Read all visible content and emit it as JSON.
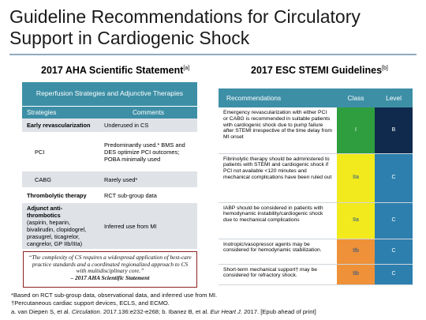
{
  "title": "Guideline Recommendations for Circulatory Support in Cardiogenic Shock",
  "left": {
    "heading": "2017 AHA Scientific Statement",
    "heading_ref": "[a]",
    "table_title": "Reperfusion Strategies and Adjunctive Therapies",
    "col1": "Strategies",
    "col2": "Comments",
    "rows": [
      {
        "strategy": "Early revascularization",
        "comment": "Underused in CS"
      },
      {
        "strategy": "PCI",
        "comment": "Predominantly used.* BMS and DES optimize PCI outcomes; POBA minimally used"
      },
      {
        "strategy": "CABG",
        "comment": "Rarely used*"
      },
      {
        "strategy": "Thrombolytic therapy",
        "comment": "RCT sub-group data"
      },
      {
        "strategy": "Adjunct anti-thrombotics",
        "strategy_detail": "(aspirin, heparin, bivalirudin, clopidogrel, prasugrel, ticagrelor, cangrelor, GP IIb/IIIa)",
        "comment": "Inferred use from MI"
      }
    ],
    "quote": "“The complexity of CS requires a widespread application of best-care practice standards and a coordinated regionalized approach to CS with multidisciplinary core.”",
    "quote_attr": "– 2017 AHA Scientific Statement"
  },
  "right": {
    "heading": "2017 ESC STEMI Guidelines",
    "heading_ref": "[b]",
    "col1": "Recommendations",
    "col2": "Class",
    "col3": "Level",
    "rows": [
      {
        "text": "Emergency revascularization with either PCI or CABG is recommended in suitable patients with cardiogenic shock due to pump failure after STEMI irrespective of the time delay from MI onset",
        "class": "I",
        "level": "B"
      },
      {
        "text": "Fibrinolytic therapy should be administered to patients with STEMI and cardiogenic shock if PCI not available <120 minutes and mechanical complications have been ruled out",
        "class": "IIa",
        "level": "C"
      },
      {
        "text": "IABP should be considered in patients with hemodynamic instability/cardiogenic shock due to mechanical complications",
        "class": "IIa",
        "level": "C"
      },
      {
        "text": "Inotropic/vasopressor agents may be considered for hemodynamic stabilization.",
        "class": "IIb",
        "level": "C"
      },
      {
        "text": "Short-term mechanical support† may be considered for refractory shock.",
        "class": "IIb",
        "level": "C"
      }
    ]
  },
  "footnotes": {
    "f1": "*Based on RCT sub-group data, observational data, and inferred use from MI.",
    "f2": "†Percutaneous cardiac support devices, ECLS, and ECMO.",
    "f3_a": "a. van Diepen S, et al. ",
    "f3_journal_a": "Circulation",
    "f3_b": ". 2017.136:e232-e268; b. Ibanez B, et al. ",
    "f3_journal_b": "Eur Heart J",
    "f3_c": ". 2017. [Epub ahead of print]"
  },
  "colors": {
    "header_teal": "#3d8fa6",
    "class_I": "#2f9e3f",
    "class_IIa": "#f3ea1e",
    "class_IIb": "#ee9138",
    "level_B": "#0f2a4d",
    "level_C": "#2d7fae",
    "quote_border": "#8b2020"
  }
}
